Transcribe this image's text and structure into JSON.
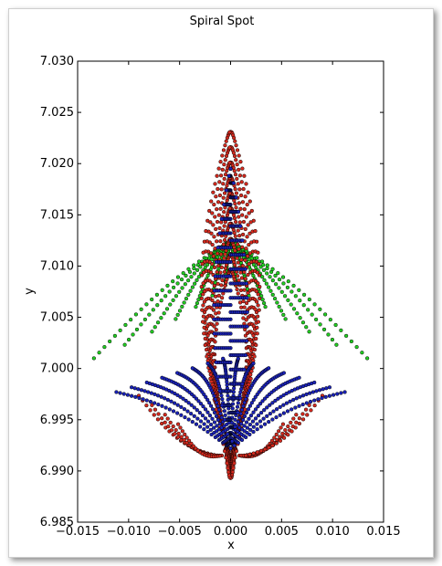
{
  "chart_data": {
    "type": "scatter",
    "title": "Spiral Spot",
    "xlabel": "x",
    "ylabel": "y",
    "xlim": [
      -0.015,
      0.015
    ],
    "ylim": [
      6.985,
      7.03
    ],
    "xticks": [
      "−0.015",
      "−0.010",
      "−0.005",
      "0.000",
      "0.005",
      "0.010",
      "0.015"
    ],
    "xtick_values": [
      -0.015,
      -0.01,
      -0.005,
      0.0,
      0.005,
      0.01,
      0.015
    ],
    "yticks": [
      "6.985",
      "6.990",
      "6.995",
      "7.000",
      "7.005",
      "7.010",
      "7.015",
      "7.020",
      "7.025",
      "7.030"
    ],
    "ytick_values": [
      6.985,
      6.99,
      6.995,
      7.0,
      7.005,
      7.01,
      7.015,
      7.02,
      7.025,
      7.03
    ],
    "grid": false,
    "series": [
      {
        "color": "#d42a1e",
        "description_points": [
          [
            -0.0026,
            7.006
          ],
          [
            -0.0022,
            7.011
          ],
          [
            -0.0012,
            7.017
          ],
          [
            -0.0006,
            7.0205
          ],
          [
            0.0,
            7.0231
          ],
          [
            0.0006,
            7.0205
          ],
          [
            0.0012,
            7.017
          ],
          [
            0.0022,
            7.011
          ],
          [
            0.0026,
            7.006
          ],
          [
            0.003,
            6.999
          ],
          [
            0.0038,
            6.9965
          ],
          [
            0.005,
            6.9945
          ],
          [
            0.002,
            6.9925
          ],
          [
            0.0008,
            6.99
          ],
          [
            0.0,
            6.9893
          ],
          [
            -0.0008,
            6.99
          ],
          [
            -0.002,
            6.9925
          ],
          [
            -0.005,
            6.9945
          ],
          [
            -0.0085,
            6.9975
          ],
          [
            -0.009,
            6.9985
          ],
          [
            -0.0038,
            6.9965
          ],
          [
            -0.003,
            6.999
          ]
        ]
      },
      {
        "color": "#22cc22",
        "description_points": [
          [
            -0.0132,
            7.0012
          ],
          [
            -0.01,
            7.003
          ],
          [
            -0.008,
            7.0045
          ],
          [
            -0.006,
            7.007
          ],
          [
            -0.004,
            7.009
          ],
          [
            -0.0025,
            7.011
          ],
          [
            -0.001,
            7.013
          ],
          [
            0.0,
            7.015
          ],
          [
            0.001,
            7.013
          ],
          [
            0.0025,
            7.011
          ],
          [
            0.004,
            7.009
          ],
          [
            0.006,
            7.007
          ],
          [
            0.008,
            7.0045
          ],
          [
            0.01,
            7.003
          ],
          [
            0.0132,
            7.0012
          ]
        ]
      },
      {
        "color": "#1a22b8",
        "description_points": [
          [
            0.0,
            7.0195
          ],
          [
            -0.001,
            7.012
          ],
          [
            -0.003,
            7.006
          ],
          [
            -0.0065,
            7.004
          ],
          [
            -0.01,
            7.001
          ],
          [
            -0.011,
            7.0
          ],
          [
            -0.005,
            6.997
          ],
          [
            -0.001,
            6.993
          ],
          [
            0.0,
            6.9922
          ],
          [
            0.001,
            6.993
          ],
          [
            0.005,
            6.997
          ],
          [
            0.011,
            7.0
          ],
          [
            0.01,
            7.001
          ],
          [
            0.0065,
            7.004
          ],
          [
            0.003,
            7.006
          ],
          [
            0.001,
            7.012
          ]
        ]
      }
    ]
  }
}
